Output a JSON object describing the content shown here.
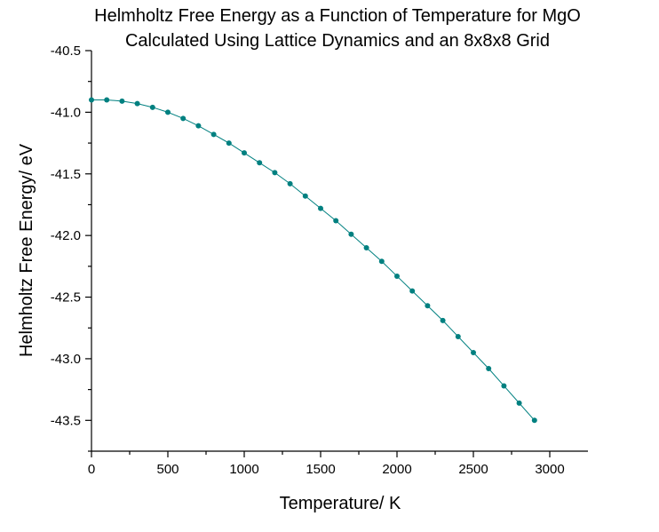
{
  "chart_data": {
    "type": "line",
    "title": [
      "Helmholtz Free Energy as a Function of Temperature for MgO",
      "Calculated Using Lattice Dynamics and an 8x8x8 Grid"
    ],
    "xlabel": "Temperature/ K",
    "ylabel": "Helmholtz Free Energy/ eV",
    "xlim": [
      0,
      3250
    ],
    "ylim": [
      -43.75,
      -40.5
    ],
    "xticks": [
      0,
      500,
      1000,
      1500,
      2000,
      2500,
      3000
    ],
    "xtick_labels": [
      "0",
      "500",
      "1000",
      "1500",
      "2000",
      "2500",
      "3000"
    ],
    "yticks": [
      -40.5,
      -41.0,
      -41.5,
      -42.0,
      -42.5,
      -43.0,
      -43.5
    ],
    "ytick_labels": [
      "-40.5",
      "-41.0",
      "-41.5",
      "-42.0",
      "-42.5",
      "-43.0",
      "-43.5"
    ],
    "grid": false,
    "color": "#008080",
    "series": [
      {
        "name": "Helmholtz Free Energy",
        "marker": "circle",
        "line": "spline",
        "x": [
          0,
          100,
          200,
          300,
          400,
          500,
          600,
          700,
          800,
          900,
          1000,
          1100,
          1200,
          1300,
          1400,
          1500,
          1600,
          1700,
          1800,
          1900,
          2000,
          2100,
          2200,
          2300,
          2400,
          2500,
          2600,
          2700,
          2800,
          2900
        ],
        "y": [
          -40.9,
          -40.9,
          -40.91,
          -40.93,
          -40.96,
          -41.0,
          -41.05,
          -41.11,
          -41.18,
          -41.25,
          -41.33,
          -41.41,
          -41.49,
          -41.58,
          -41.68,
          -41.78,
          -41.88,
          -41.99,
          -42.1,
          -42.21,
          -42.33,
          -42.45,
          -42.57,
          -42.69,
          -42.82,
          -42.95,
          -43.08,
          -43.22,
          -43.36,
          -43.5
        ]
      }
    ]
  }
}
